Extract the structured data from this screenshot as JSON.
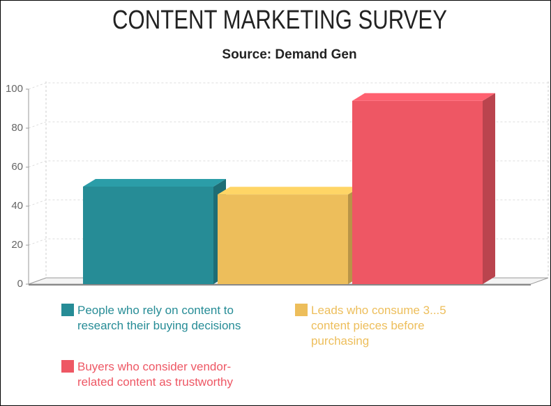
{
  "chart_data": {
    "type": "bar3d",
    "title": "CONTENT MARKETING SURVEY",
    "subtitle": "Source: Demand Gen",
    "categories": [
      null
    ],
    "series": [
      {
        "name": "People who rely on content to research their buying decisions",
        "color": "#268c96",
        "values": [
          50
        ]
      },
      {
        "name": "Leads who consume 3...5 content pieces before purchasing",
        "color": "#edbe5b",
        "values": [
          46
        ]
      },
      {
        "name": "Buyers who consider vendor-related content as trustworthy",
        "color": "#ee5764",
        "values": [
          94
        ]
      }
    ],
    "ylim": [
      0,
      100
    ],
    "yticks": [
      0,
      20,
      40,
      60,
      80,
      100
    ],
    "grid": true
  }
}
